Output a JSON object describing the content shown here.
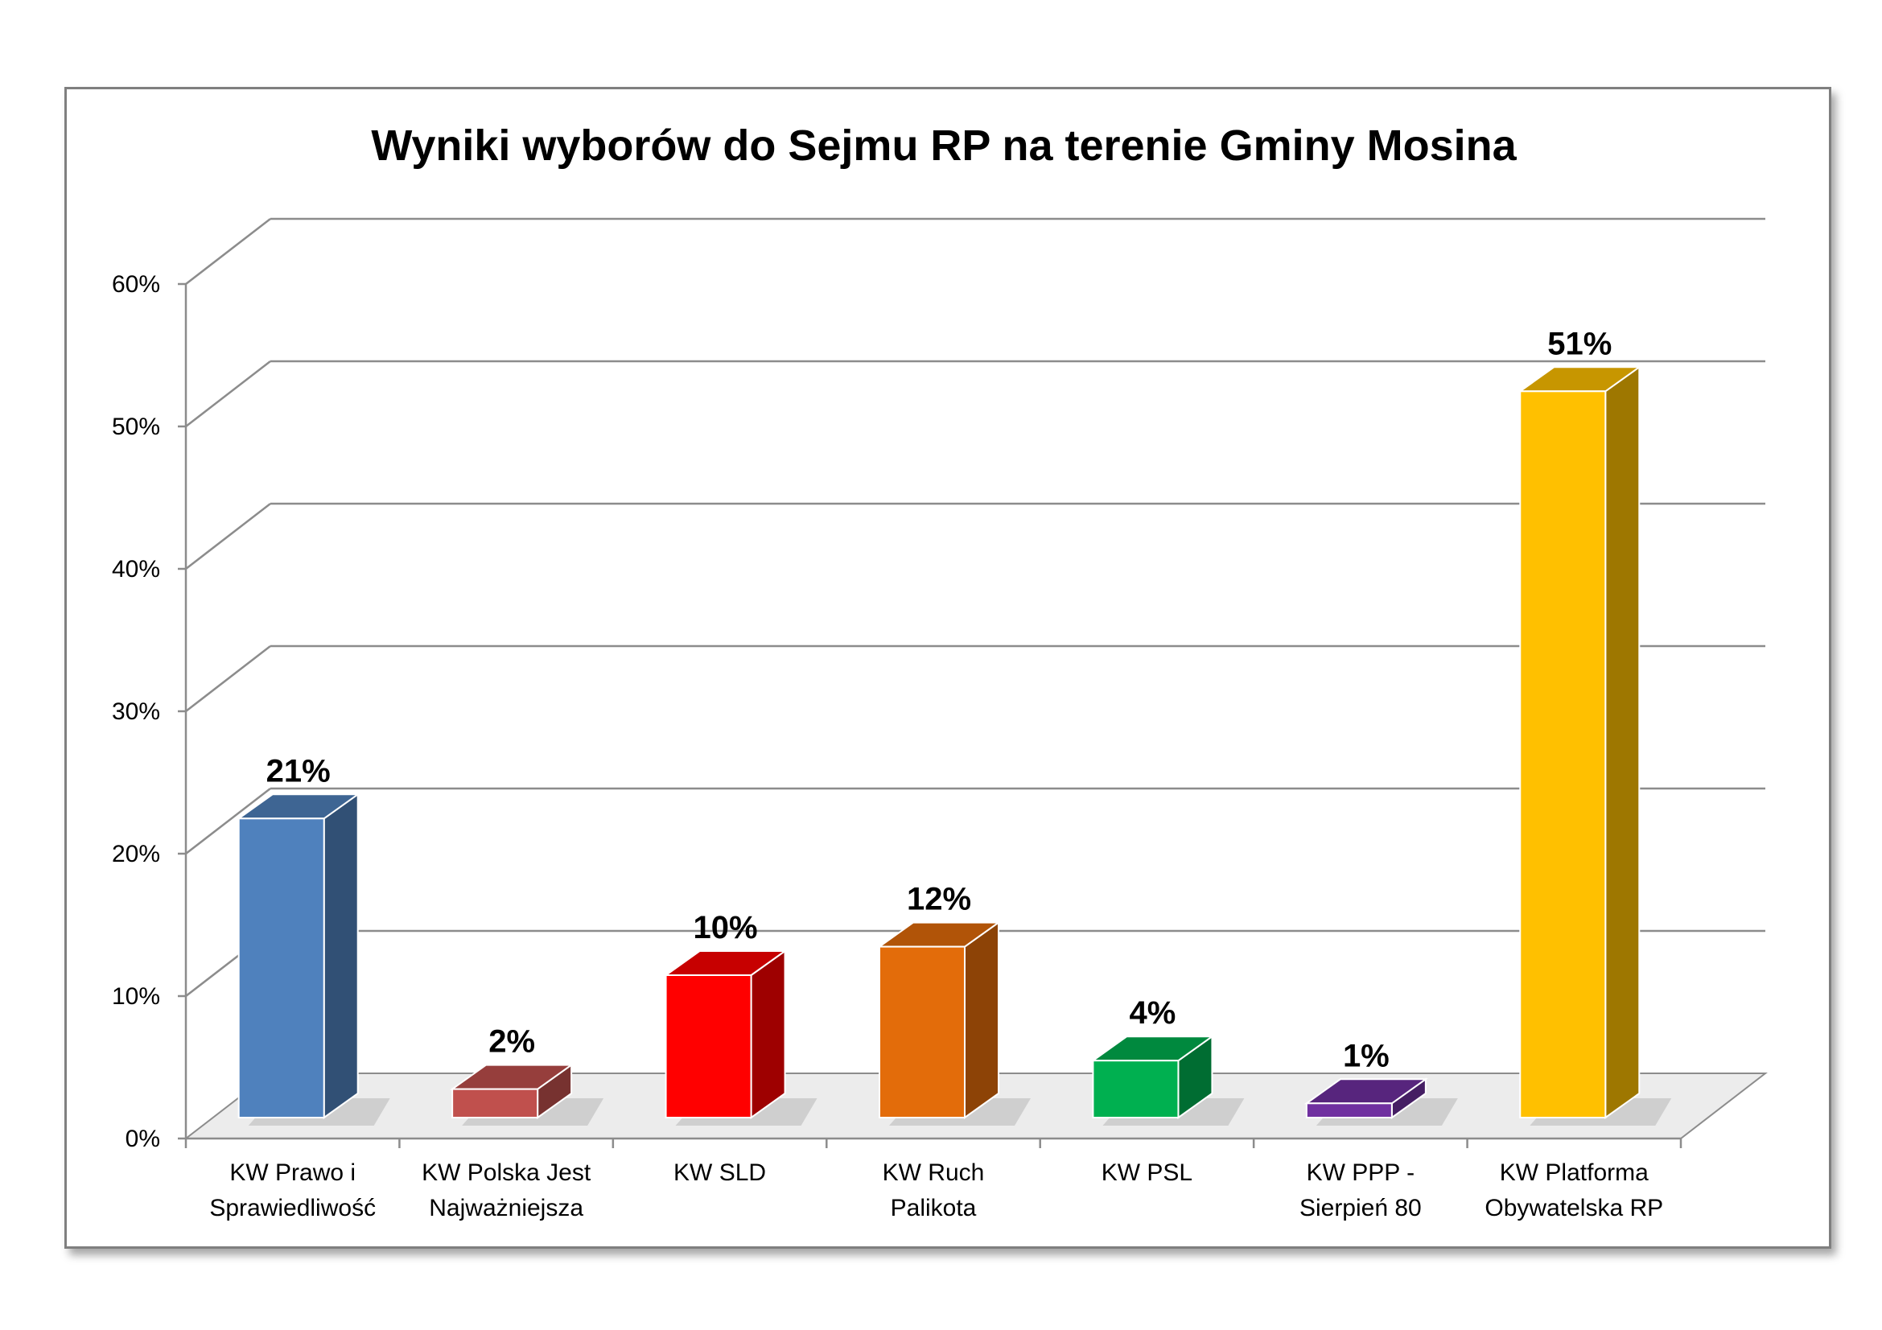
{
  "chart_data": {
    "type": "bar",
    "style": "3d-column",
    "title": "Wyniki wyborów do Sejmu RP na terenie Gminy Mosina",
    "xlabel": "",
    "ylabel": "",
    "ylim": [
      0,
      60
    ],
    "y_ticks": [
      "0%",
      "10%",
      "20%",
      "30%",
      "40%",
      "50%",
      "60%"
    ],
    "grid": true,
    "legend": "none",
    "categories": [
      [
        "KW Prawo i",
        "Sprawiedliwość"
      ],
      [
        "KW Polska Jest",
        "Najważniejsza"
      ],
      [
        "KW SLD"
      ],
      [
        "KW Ruch",
        "Palikota"
      ],
      [
        "KW PSL"
      ],
      [
        "KW PPP -",
        "Sierpień 80"
      ],
      [
        "KW Platforma",
        "Obywatelska RP"
      ]
    ],
    "values": [
      21,
      2,
      10,
      12,
      4,
      1,
      51
    ],
    "value_labels": [
      "21%",
      "2%",
      "10%",
      "12%",
      "4%",
      "1%",
      "51%"
    ],
    "colors": [
      "#4f81bd",
      "#c0504d",
      "#ff0000",
      "#e36c0a",
      "#00b050",
      "#7030a0",
      "#ffc000"
    ]
  }
}
